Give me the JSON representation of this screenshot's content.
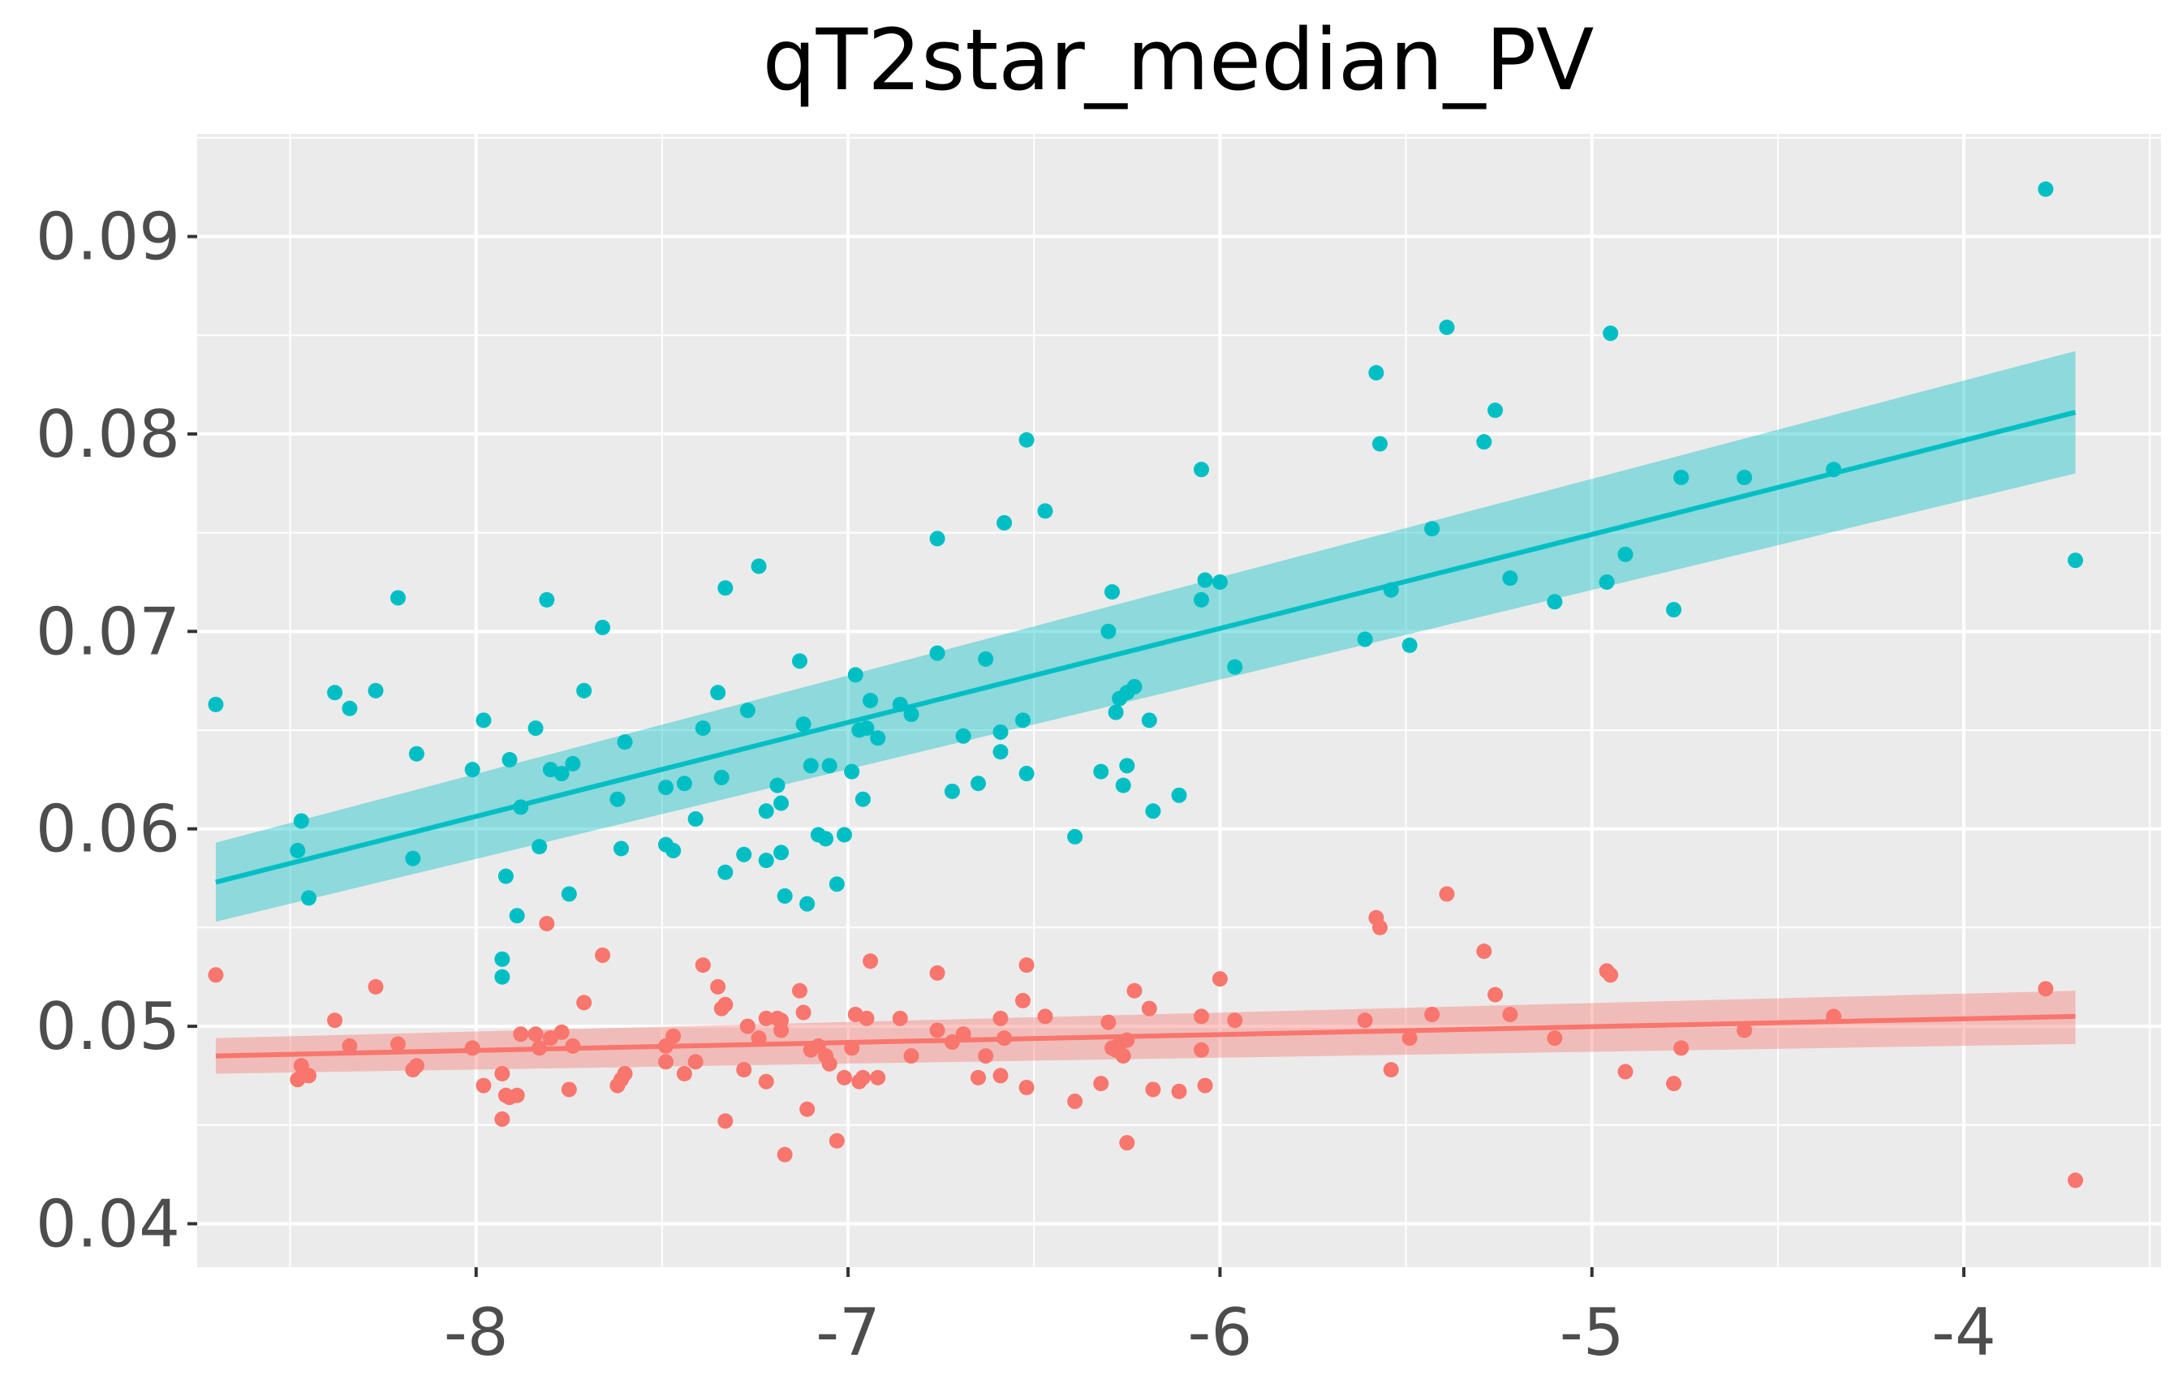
{
  "chart_data": {
    "type": "scatter",
    "title": "qT2star_median_PV",
    "xlabel": "",
    "ylabel": "",
    "xlim": [
      -8.75,
      -3.47
    ],
    "ylim": [
      0.0378,
      0.0952
    ],
    "x_ticks": [
      -8,
      -7,
      -6,
      -5,
      -4
    ],
    "x_tick_labels": [
      "-8",
      "-7",
      "-6",
      "-5",
      "-4"
    ],
    "y_ticks": [
      0.04,
      0.05,
      0.06,
      0.07,
      0.08,
      0.09
    ],
    "y_tick_labels": [
      "0.04",
      "0.05",
      "0.06",
      "0.07",
      "0.08",
      "0.09"
    ],
    "grid": true,
    "legend": "none",
    "colors": {
      "panel": "#ebebeb",
      "grid": "#ffffff",
      "series_teal": "#00bfc4",
      "series_salmon": "#f8766d"
    },
    "series": [
      {
        "color": "#00bfc4",
        "fit": {
          "x": [
            -8.7,
            -3.7
          ],
          "y": [
            0.0573,
            0.0811
          ],
          "ci_lower": [
            0.0553,
            0.078
          ],
          "ci_upper": [
            0.0593,
            0.0842
          ]
        },
        "points": [
          [
            -8.7,
            0.0663
          ],
          [
            -8.48,
            0.0589
          ],
          [
            -8.47,
            0.0604
          ],
          [
            -8.45,
            0.0565
          ],
          [
            -8.38,
            0.0669
          ],
          [
            -8.34,
            0.0661
          ],
          [
            -8.27,
            0.067
          ],
          [
            -8.21,
            0.0717
          ],
          [
            -8.17,
            0.0585
          ],
          [
            -8.16,
            0.0638
          ],
          [
            -8.01,
            0.063
          ],
          [
            -7.98,
            0.0655
          ],
          [
            -7.93,
            0.0534
          ],
          [
            -7.93,
            0.0525
          ],
          [
            -7.92,
            0.0576
          ],
          [
            -7.91,
            0.0635
          ],
          [
            -7.89,
            0.0556
          ],
          [
            -7.88,
            0.0611
          ],
          [
            -7.84,
            0.0651
          ],
          [
            -7.83,
            0.0591
          ],
          [
            -7.81,
            0.0716
          ],
          [
            -7.8,
            0.063
          ],
          [
            -7.77,
            0.0628
          ],
          [
            -7.75,
            0.0567
          ],
          [
            -7.74,
            0.0633
          ],
          [
            -7.71,
            0.067
          ],
          [
            -7.66,
            0.0702
          ],
          [
            -7.62,
            0.0615
          ],
          [
            -7.61,
            0.059
          ],
          [
            -7.6,
            0.0644
          ],
          [
            -7.49,
            0.0592
          ],
          [
            -7.49,
            0.0621
          ],
          [
            -7.47,
            0.0589
          ],
          [
            -7.44,
            0.0623
          ],
          [
            -7.41,
            0.0605
          ],
          [
            -7.39,
            0.0651
          ],
          [
            -7.35,
            0.0669
          ],
          [
            -7.34,
            0.0626
          ],
          [
            -7.33,
            0.0722
          ],
          [
            -7.33,
            0.0578
          ],
          [
            -7.28,
            0.0587
          ],
          [
            -7.27,
            0.066
          ],
          [
            -7.24,
            0.0733
          ],
          [
            -7.22,
            0.0609
          ],
          [
            -7.22,
            0.0584
          ],
          [
            -7.19,
            0.0622
          ],
          [
            -7.18,
            0.0588
          ],
          [
            -7.18,
            0.0613
          ],
          [
            -7.17,
            0.0566
          ],
          [
            -7.13,
            0.0685
          ],
          [
            -7.12,
            0.0653
          ],
          [
            -7.11,
            0.0562
          ],
          [
            -7.1,
            0.0632
          ],
          [
            -7.08,
            0.0597
          ],
          [
            -7.06,
            0.0595
          ],
          [
            -7.05,
            0.0632
          ],
          [
            -7.03,
            0.0572
          ],
          [
            -7.01,
            0.0597
          ],
          [
            -6.99,
            0.0629
          ],
          [
            -6.98,
            0.0678
          ],
          [
            -6.97,
            0.065
          ],
          [
            -6.96,
            0.0615
          ],
          [
            -6.95,
            0.0651
          ],
          [
            -6.94,
            0.0665
          ],
          [
            -6.92,
            0.0646
          ],
          [
            -6.86,
            0.0663
          ],
          [
            -6.83,
            0.0658
          ],
          [
            -6.76,
            0.0747
          ],
          [
            -6.76,
            0.0689
          ],
          [
            -6.72,
            0.0619
          ],
          [
            -6.69,
            0.0647
          ],
          [
            -6.65,
            0.0623
          ],
          [
            -6.63,
            0.0686
          ],
          [
            -6.59,
            0.0649
          ],
          [
            -6.59,
            0.0639
          ],
          [
            -6.58,
            0.0755
          ],
          [
            -6.53,
            0.0655
          ],
          [
            -6.52,
            0.0797
          ],
          [
            -6.52,
            0.0628
          ],
          [
            -6.47,
            0.0761
          ],
          [
            -6.39,
            0.0596
          ],
          [
            -6.32,
            0.0629
          ],
          [
            -6.3,
            0.07
          ],
          [
            -6.29,
            0.072
          ],
          [
            -6.28,
            0.0659
          ],
          [
            -6.27,
            0.0666
          ],
          [
            -6.26,
            0.0622
          ],
          [
            -6.25,
            0.0669
          ],
          [
            -6.25,
            0.0632
          ],
          [
            -6.23,
            0.0672
          ],
          [
            -6.19,
            0.0655
          ],
          [
            -6.18,
            0.0609
          ],
          [
            -6.11,
            0.0617
          ],
          [
            -6.05,
            0.0716
          ],
          [
            -6.05,
            0.0782
          ],
          [
            -6.04,
            0.0726
          ],
          [
            -6.0,
            0.0725
          ],
          [
            -5.96,
            0.0682
          ],
          [
            -5.61,
            0.0696
          ],
          [
            -5.58,
            0.0831
          ],
          [
            -5.57,
            0.0795
          ],
          [
            -5.54,
            0.0721
          ],
          [
            -5.49,
            0.0693
          ],
          [
            -5.43,
            0.0752
          ],
          [
            -5.39,
            0.0854
          ],
          [
            -5.29,
            0.0796
          ],
          [
            -5.26,
            0.0812
          ],
          [
            -5.22,
            0.0727
          ],
          [
            -5.1,
            0.0715
          ],
          [
            -4.96,
            0.0725
          ],
          [
            -4.95,
            0.0851
          ],
          [
            -4.91,
            0.0739
          ],
          [
            -4.78,
            0.0711
          ],
          [
            -4.76,
            0.0778
          ],
          [
            -4.59,
            0.0778
          ],
          [
            -4.35,
            0.0782
          ],
          [
            -3.78,
            0.0924
          ],
          [
            -3.7,
            0.0736
          ]
        ]
      },
      {
        "color": "#f8766d",
        "fit": {
          "x": [
            -8.7,
            -3.7
          ],
          "y": [
            0.0485,
            0.0505
          ],
          "ci_lower": [
            0.0476,
            0.0491
          ],
          "ci_upper": [
            0.0494,
            0.0518
          ]
        },
        "points": [
          [
            -8.7,
            0.0526
          ],
          [
            -8.48,
            0.0473
          ],
          [
            -8.47,
            0.048
          ],
          [
            -8.45,
            0.0475
          ],
          [
            -8.38,
            0.0503
          ],
          [
            -8.34,
            0.049
          ],
          [
            -8.27,
            0.052
          ],
          [
            -8.21,
            0.0491
          ],
          [
            -8.17,
            0.0478
          ],
          [
            -8.16,
            0.048
          ],
          [
            -8.01,
            0.0489
          ],
          [
            -7.98,
            0.047
          ],
          [
            -7.93,
            0.0476
          ],
          [
            -7.93,
            0.0453
          ],
          [
            -7.92,
            0.0465
          ],
          [
            -7.91,
            0.0464
          ],
          [
            -7.89,
            0.0465
          ],
          [
            -7.88,
            0.0496
          ],
          [
            -7.84,
            0.0496
          ],
          [
            -7.83,
            0.0489
          ],
          [
            -7.81,
            0.0552
          ],
          [
            -7.8,
            0.0494
          ],
          [
            -7.77,
            0.0497
          ],
          [
            -7.75,
            0.0468
          ],
          [
            -7.74,
            0.049
          ],
          [
            -7.71,
            0.0512
          ],
          [
            -7.66,
            0.0536
          ],
          [
            -7.62,
            0.047
          ],
          [
            -7.61,
            0.0473
          ],
          [
            -7.6,
            0.0476
          ],
          [
            -7.49,
            0.0482
          ],
          [
            -7.49,
            0.049
          ],
          [
            -7.47,
            0.0495
          ],
          [
            -7.44,
            0.0476
          ],
          [
            -7.41,
            0.0482
          ],
          [
            -7.39,
            0.0531
          ],
          [
            -7.35,
            0.052
          ],
          [
            -7.34,
            0.0509
          ],
          [
            -7.33,
            0.0511
          ],
          [
            -7.33,
            0.0452
          ],
          [
            -7.28,
            0.0478
          ],
          [
            -7.27,
            0.05
          ],
          [
            -7.24,
            0.0494
          ],
          [
            -7.22,
            0.0472
          ],
          [
            -7.22,
            0.0504
          ],
          [
            -7.19,
            0.0504
          ],
          [
            -7.18,
            0.0503
          ],
          [
            -7.18,
            0.0498
          ],
          [
            -7.17,
            0.0435
          ],
          [
            -7.13,
            0.0518
          ],
          [
            -7.12,
            0.0507
          ],
          [
            -7.11,
            0.0458
          ],
          [
            -7.1,
            0.0488
          ],
          [
            -7.08,
            0.049
          ],
          [
            -7.06,
            0.0485
          ],
          [
            -7.05,
            0.0481
          ],
          [
            -7.03,
            0.0442
          ],
          [
            -7.01,
            0.0474
          ],
          [
            -6.99,
            0.0489
          ],
          [
            -6.98,
            0.0506
          ],
          [
            -6.97,
            0.0472
          ],
          [
            -6.96,
            0.0474
          ],
          [
            -6.95,
            0.0504
          ],
          [
            -6.94,
            0.0533
          ],
          [
            -6.92,
            0.0474
          ],
          [
            -6.86,
            0.0504
          ],
          [
            -6.83,
            0.0485
          ],
          [
            -6.76,
            0.0527
          ],
          [
            -6.76,
            0.0498
          ],
          [
            -6.72,
            0.0492
          ],
          [
            -6.69,
            0.0496
          ],
          [
            -6.65,
            0.0474
          ],
          [
            -6.63,
            0.0485
          ],
          [
            -6.59,
            0.0504
          ],
          [
            -6.59,
            0.0475
          ],
          [
            -6.58,
            0.0494
          ],
          [
            -6.53,
            0.0513
          ],
          [
            -6.52,
            0.0531
          ],
          [
            -6.52,
            0.0469
          ],
          [
            -6.47,
            0.0505
          ],
          [
            -6.39,
            0.0462
          ],
          [
            -6.32,
            0.0471
          ],
          [
            -6.3,
            0.0502
          ],
          [
            -6.29,
            0.0489
          ],
          [
            -6.28,
            0.0488
          ],
          [
            -6.27,
            0.0491
          ],
          [
            -6.26,
            0.0485
          ],
          [
            -6.25,
            0.0441
          ],
          [
            -6.25,
            0.0493
          ],
          [
            -6.23,
            0.0518
          ],
          [
            -6.19,
            0.0509
          ],
          [
            -6.18,
            0.0468
          ],
          [
            -6.11,
            0.0467
          ],
          [
            -6.05,
            0.0488
          ],
          [
            -6.05,
            0.0505
          ],
          [
            -6.04,
            0.047
          ],
          [
            -6.0,
            0.0524
          ],
          [
            -5.96,
            0.0503
          ],
          [
            -5.61,
            0.0503
          ],
          [
            -5.58,
            0.0555
          ],
          [
            -5.57,
            0.055
          ],
          [
            -5.54,
            0.0478
          ],
          [
            -5.49,
            0.0494
          ],
          [
            -5.43,
            0.0506
          ],
          [
            -5.39,
            0.0567
          ],
          [
            -5.29,
            0.0538
          ],
          [
            -5.26,
            0.0516
          ],
          [
            -5.22,
            0.0506
          ],
          [
            -5.1,
            0.0494
          ],
          [
            -4.96,
            0.0528
          ],
          [
            -4.95,
            0.0526
          ],
          [
            -4.91,
            0.0477
          ],
          [
            -4.78,
            0.0471
          ],
          [
            -4.76,
            0.0489
          ],
          [
            -4.59,
            0.0498
          ],
          [
            -4.35,
            0.0505
          ],
          [
            -3.78,
            0.0519
          ],
          [
            -3.7,
            0.0422
          ]
        ]
      }
    ]
  }
}
